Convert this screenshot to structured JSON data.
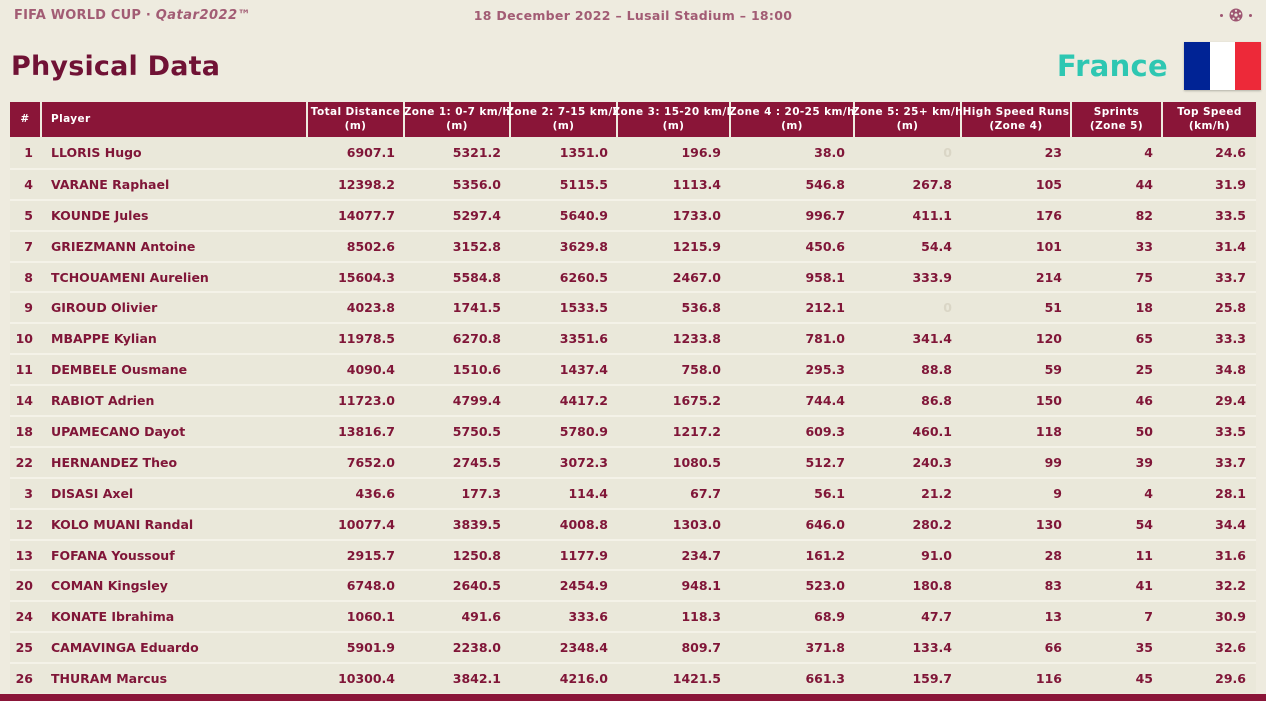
{
  "topbar": {
    "logo_fifa": "FIFA WORLD CUP",
    "logo_separator": "·",
    "logo_qatar": "Qatar2022™",
    "match_info": "18 December 2022 – Lusail Stadium – 18:00",
    "ball_icon": "soccer-ball"
  },
  "header": {
    "title": "Physical Data",
    "team": "France",
    "flag": "france-flag"
  },
  "colors": {
    "maroon": "#8A1538",
    "title_maroon": "#701235",
    "row_text": "#801638",
    "topbar_text": "#A25C74",
    "teal_accent": "#2EC7B2",
    "background": "#EEEBDF",
    "faint_value": "#DAD6C6",
    "flag_blue": "#002395",
    "flag_red": "#ED2939"
  },
  "table": {
    "columns": [
      {
        "label": "#",
        "sub": ""
      },
      {
        "label": "Player",
        "sub": ""
      },
      {
        "label": "Total Distance",
        "sub": "(m)"
      },
      {
        "label": "Zone 1: 0-7 km/h",
        "sub": "(m)"
      },
      {
        "label": "Zone 2: 7-15 km/h",
        "sub": "(m)"
      },
      {
        "label": "Zone 3: 15-20 km/h",
        "sub": "(m)"
      },
      {
        "label": "Zone 4 : 20-25 km/h",
        "sub": "(m)"
      },
      {
        "label": "Zone 5: 25+ km/h",
        "sub": "(m)"
      },
      {
        "label": "High Speed Runs",
        "sub": "(Zone 4)"
      },
      {
        "label": "Sprints",
        "sub": "(Zone 5)"
      },
      {
        "label": "Top Speed",
        "sub": "(km/h)"
      }
    ],
    "rows": [
      [
        "1",
        "LLORIS Hugo",
        "6907.1",
        "5321.2",
        "1351.0",
        "196.9",
        "38.0",
        "0",
        "23",
        "4",
        "24.6"
      ],
      [
        "4",
        "VARANE Raphael",
        "12398.2",
        "5356.0",
        "5115.5",
        "1113.4",
        "546.8",
        "267.8",
        "105",
        "44",
        "31.9"
      ],
      [
        "5",
        "KOUNDE Jules",
        "14077.7",
        "5297.4",
        "5640.9",
        "1733.0",
        "996.7",
        "411.1",
        "176",
        "82",
        "33.5"
      ],
      [
        "7",
        "GRIEZMANN Antoine",
        "8502.6",
        "3152.8",
        "3629.8",
        "1215.9",
        "450.6",
        "54.4",
        "101",
        "33",
        "31.4"
      ],
      [
        "8",
        "TCHOUAMENI Aurelien",
        "15604.3",
        "5584.8",
        "6260.5",
        "2467.0",
        "958.1",
        "333.9",
        "214",
        "75",
        "33.7"
      ],
      [
        "9",
        "GIROUD Olivier",
        "4023.8",
        "1741.5",
        "1533.5",
        "536.8",
        "212.1",
        "0",
        "51",
        "18",
        "25.8"
      ],
      [
        "10",
        "MBAPPE Kylian",
        "11978.5",
        "6270.8",
        "3351.6",
        "1233.8",
        "781.0",
        "341.4",
        "120",
        "65",
        "33.3"
      ],
      [
        "11",
        "DEMBELE Ousmane",
        "4090.4",
        "1510.6",
        "1437.4",
        "758.0",
        "295.3",
        "88.8",
        "59",
        "25",
        "34.8"
      ],
      [
        "14",
        "RABIOT Adrien",
        "11723.0",
        "4799.4",
        "4417.2",
        "1675.2",
        "744.4",
        "86.8",
        "150",
        "46",
        "29.4"
      ],
      [
        "18",
        "UPAMECANO Dayot",
        "13816.7",
        "5750.5",
        "5780.9",
        "1217.2",
        "609.3",
        "460.1",
        "118",
        "50",
        "33.5"
      ],
      [
        "22",
        "HERNANDEZ Theo",
        "7652.0",
        "2745.5",
        "3072.3",
        "1080.5",
        "512.7",
        "240.3",
        "99",
        "39",
        "33.7"
      ],
      [
        "3",
        "DISASI Axel",
        "436.6",
        "177.3",
        "114.4",
        "67.7",
        "56.1",
        "21.2",
        "9",
        "4",
        "28.1"
      ],
      [
        "12",
        "KOLO MUANI Randal",
        "10077.4",
        "3839.5",
        "4008.8",
        "1303.0",
        "646.0",
        "280.2",
        "130",
        "54",
        "34.4"
      ],
      [
        "13",
        "FOFANA Youssouf",
        "2915.7",
        "1250.8",
        "1177.9",
        "234.7",
        "161.2",
        "91.0",
        "28",
        "11",
        "31.6"
      ],
      [
        "20",
        "COMAN Kingsley",
        "6748.0",
        "2640.5",
        "2454.9",
        "948.1",
        "523.0",
        "180.8",
        "83",
        "41",
        "32.2"
      ],
      [
        "24",
        "KONATE Ibrahima",
        "1060.1",
        "491.6",
        "333.6",
        "118.3",
        "68.9",
        "47.7",
        "13",
        "7",
        "30.9"
      ],
      [
        "25",
        "CAMAVINGA Eduardo",
        "5901.9",
        "2238.0",
        "2348.4",
        "809.7",
        "371.8",
        "133.4",
        "66",
        "35",
        "32.6"
      ],
      [
        "26",
        "THURAM Marcus",
        "10300.4",
        "3842.1",
        "4216.0",
        "1421.5",
        "661.3",
        "159.7",
        "116",
        "45",
        "29.6"
      ]
    ]
  }
}
